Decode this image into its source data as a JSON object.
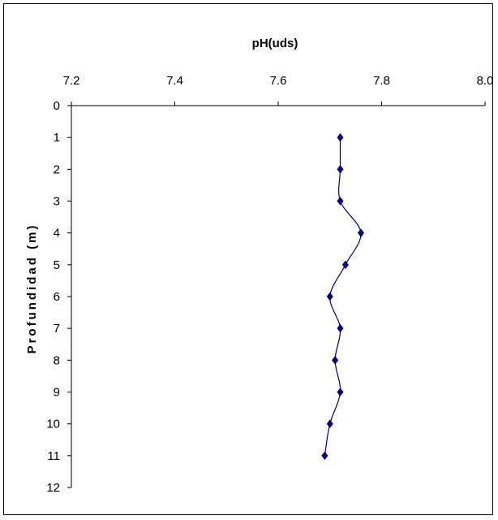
{
  "chart_data": {
    "type": "line",
    "title": "",
    "xlabel": "pH(uds)",
    "ylabel": "Profundidad (m)",
    "x_axis_position": "top",
    "y_axis_inverted": true,
    "xlim": [
      7.2,
      8.0
    ],
    "ylim": [
      0,
      12
    ],
    "x_ticks": [
      "7.2",
      "7.4",
      "7.6",
      "7.8",
      "8.0"
    ],
    "y_ticks": [
      "0",
      "1",
      "2",
      "3",
      "4",
      "5",
      "6",
      "7",
      "8",
      "9",
      "10",
      "11",
      "12"
    ],
    "grid": false,
    "legend": "none",
    "series": [
      {
        "color": "#000080",
        "marker": "diamond",
        "smooth": true,
        "points": [
          {
            "depth": 1,
            "ph": 7.72
          },
          {
            "depth": 2,
            "ph": 7.72
          },
          {
            "depth": 3,
            "ph": 7.72
          },
          {
            "depth": 4,
            "ph": 7.76
          },
          {
            "depth": 5,
            "ph": 7.73
          },
          {
            "depth": 6,
            "ph": 7.7
          },
          {
            "depth": 7,
            "ph": 7.72
          },
          {
            "depth": 8,
            "ph": 7.71
          },
          {
            "depth": 9,
            "ph": 7.72
          },
          {
            "depth": 10,
            "ph": 7.7
          },
          {
            "depth": 11,
            "ph": 7.69
          }
        ]
      }
    ]
  }
}
